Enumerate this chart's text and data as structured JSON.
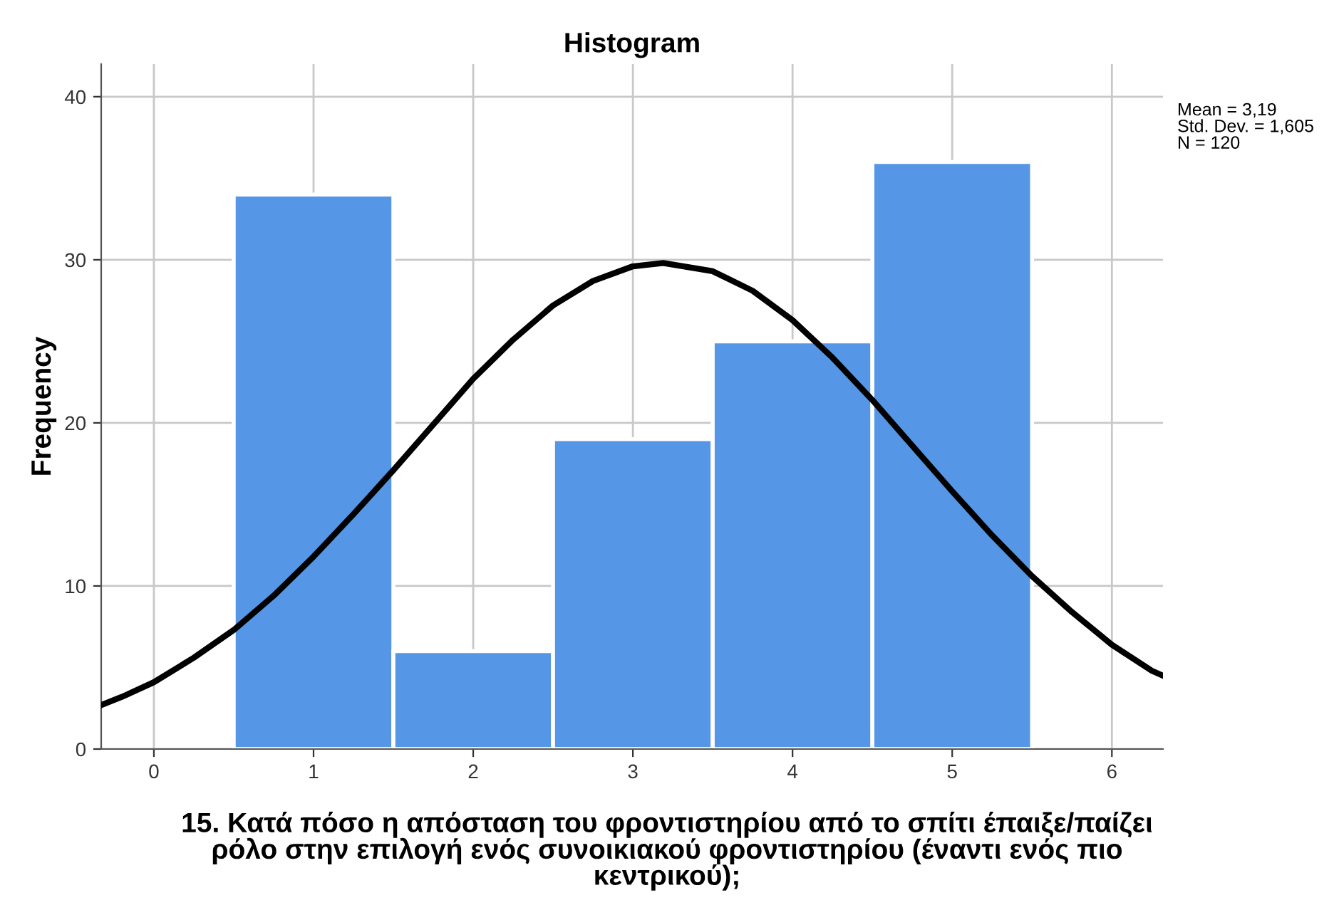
{
  "chart_data": {
    "type": "histogram",
    "title": "Histogram",
    "xlabel": "15. Κατά πόσο η απόσταση του φροντιστηρίου από το σπίτι έπαιξε/παίζει\nρόλο στην επιλογή ενός συνοικιακού φροντιστηρίου (έναντι ενός πιο\nκεντρικού);",
    "ylabel": "Frequency",
    "bins": [
      0.5,
      1.5,
      2.5,
      3.5,
      4.5,
      5.5
    ],
    "values": [
      34,
      6,
      19,
      25,
      36
    ],
    "color": "#5596e6",
    "series": [
      {
        "type": "line",
        "color": "#000000",
        "x": [
          -0.33,
          -0.2,
          0,
          0.25,
          0.5,
          0.75,
          1,
          1.25,
          1.5,
          1.75,
          2,
          2.25,
          2.5,
          2.75,
          3,
          3.19,
          3.5,
          3.75,
          4,
          4.25,
          4.5,
          4.75,
          5,
          5.25,
          5.5,
          5.75,
          6,
          6.25,
          6.32
        ],
        "values": [
          2.7,
          3.2,
          4.1,
          5.6,
          7.3,
          9.4,
          11.8,
          14.4,
          17.1,
          19.9,
          22.7,
          25.1,
          27.2,
          28.7,
          29.6,
          29.8,
          29.3,
          28.1,
          26.3,
          24.0,
          21.4,
          18.6,
          15.8,
          13.1,
          10.6,
          8.4,
          6.4,
          4.8,
          4.5
        ]
      }
    ],
    "xlim": [
      -0.33,
      6.32
    ],
    "xticks": [
      0,
      1,
      2,
      3,
      4,
      5,
      6
    ],
    "ylim": [
      0,
      42
    ],
    "yticks": [
      0,
      10,
      20,
      30,
      40
    ],
    "grid": true,
    "annotations": [
      "Mean = 3,19\nStd. Dev. = 1,605\nN = 120"
    ]
  }
}
